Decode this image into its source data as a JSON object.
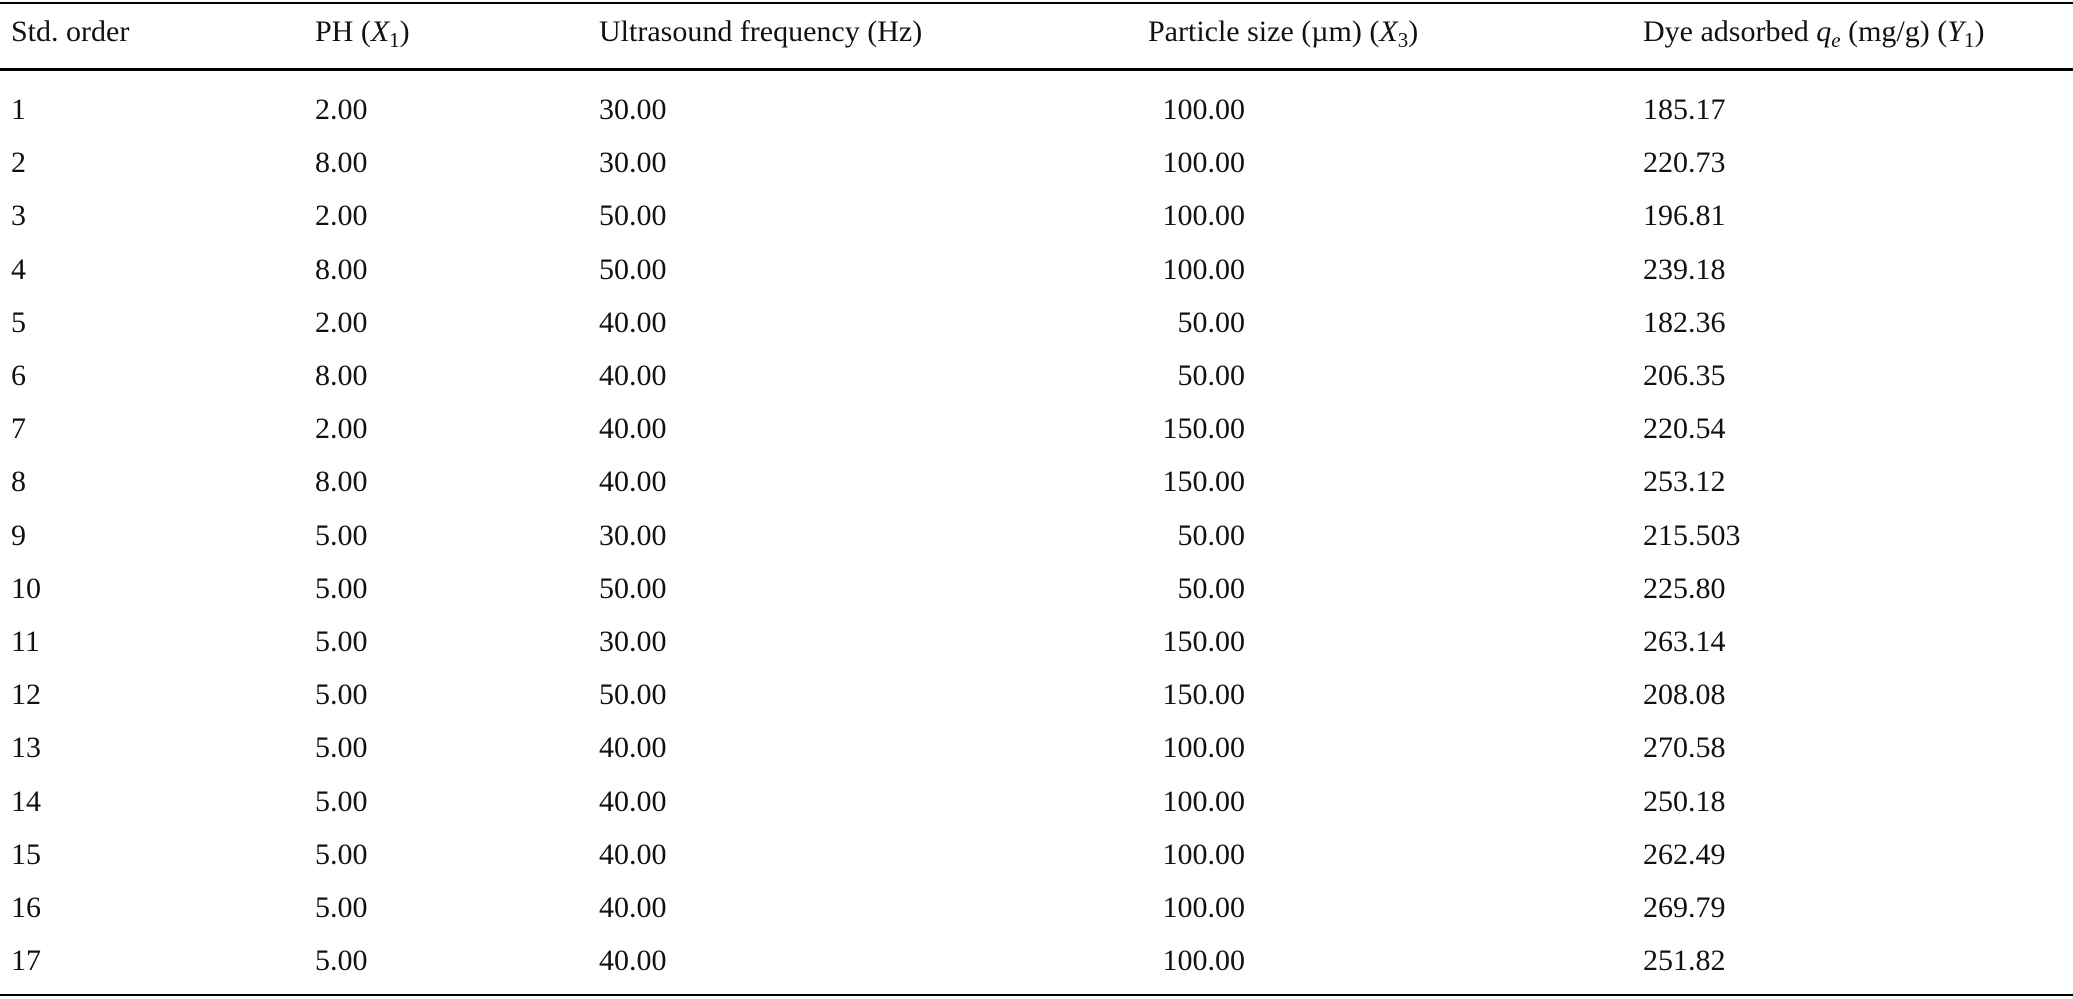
{
  "table": {
    "header": [
      [
        {
          "text": "Std. order"
        }
      ],
      [
        {
          "text": "PH ("
        },
        {
          "text": "X",
          "style": "italic"
        },
        {
          "text": "1",
          "style": "sub"
        },
        {
          "text": ")"
        }
      ],
      [
        {
          "text": "Ultrasound frequency (Hz)"
        }
      ],
      [
        {
          "text": "Particle size (µm) ("
        },
        {
          "text": "X",
          "style": "italic"
        },
        {
          "text": "3",
          "style": "sub"
        },
        {
          "text": ")"
        }
      ],
      [
        {
          "text": "Dye adsorbed "
        },
        {
          "text": "q",
          "style": "italic"
        },
        {
          "text": "e",
          "style": "italic-sub"
        },
        {
          "text": " (mg/g) ("
        },
        {
          "text": "Y",
          "style": "italic"
        },
        {
          "text": "1",
          "style": "sub"
        },
        {
          "text": ")"
        }
      ]
    ],
    "align": [
      "left",
      "left",
      "left",
      "right",
      "left"
    ],
    "rows": [
      [
        "1",
        "2.00",
        "30.00",
        "100.00",
        "185.17"
      ],
      [
        "2",
        "8.00",
        "30.00",
        "100.00",
        "220.73"
      ],
      [
        "3",
        "2.00",
        "50.00",
        "100.00",
        "196.81"
      ],
      [
        "4",
        "8.00",
        "50.00",
        "100.00",
        "239.18"
      ],
      [
        "5",
        "2.00",
        "40.00",
        "50.00",
        "182.36"
      ],
      [
        "6",
        "8.00",
        "40.00",
        "50.00",
        "206.35"
      ],
      [
        "7",
        "2.00",
        "40.00",
        "150.00",
        "220.54"
      ],
      [
        "8",
        "8.00",
        "40.00",
        "150.00",
        "253.12"
      ],
      [
        "9",
        "5.00",
        "30.00",
        "50.00",
        "215.503"
      ],
      [
        "10",
        "5.00",
        "50.00",
        "50.00",
        "225.80"
      ],
      [
        "11",
        "5.00",
        "30.00",
        "150.00",
        "263.14"
      ],
      [
        "12",
        "5.00",
        "50.00",
        "150.00",
        "208.08"
      ],
      [
        "13",
        "5.00",
        "40.00",
        "100.00",
        "270.58"
      ],
      [
        "14",
        "5.00",
        "40.00",
        "100.00",
        "250.18"
      ],
      [
        "15",
        "5.00",
        "40.00",
        "100.00",
        "262.49"
      ],
      [
        "16",
        "5.00",
        "40.00",
        "100.00",
        "269.79"
      ],
      [
        "17",
        "5.00",
        "40.00",
        "100.00",
        "251.82"
      ]
    ]
  }
}
